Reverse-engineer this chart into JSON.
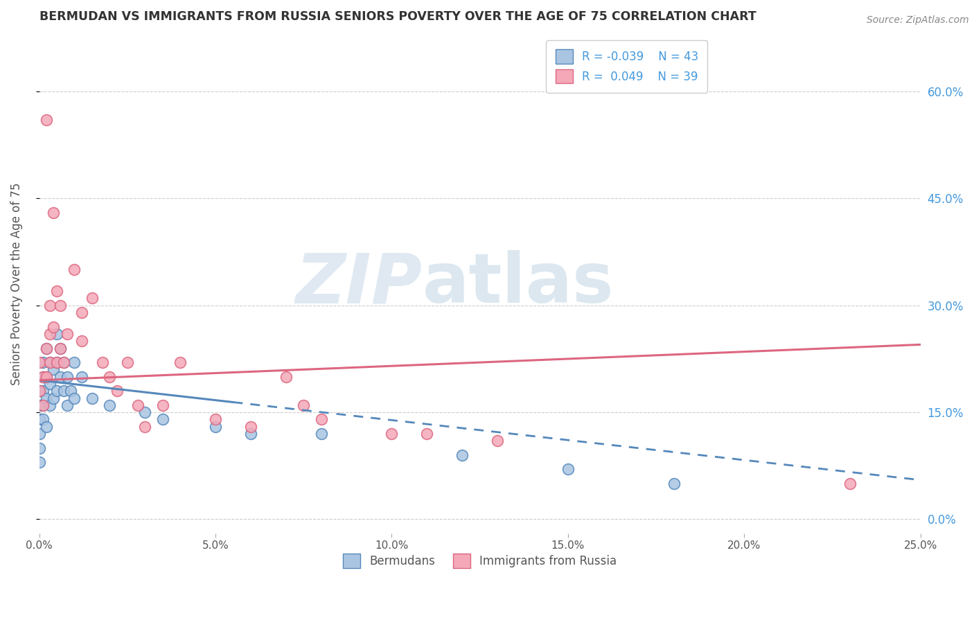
{
  "title": "BERMUDAN VS IMMIGRANTS FROM RUSSIA SENIORS POVERTY OVER THE AGE OF 75 CORRELATION CHART",
  "source": "Source: ZipAtlas.com",
  "xlabel": "",
  "ylabel": "Seniors Poverty Over the Age of 75",
  "xlim": [
    0.0,
    0.25
  ],
  "ylim": [
    -0.02,
    0.68
  ],
  "xticks": [
    0.0,
    0.05,
    0.1,
    0.15,
    0.2,
    0.25
  ],
  "xtick_labels": [
    "0.0%",
    "5.0%",
    "10.0%",
    "15.0%",
    "20.0%",
    "25.0%"
  ],
  "ytick_positions": [
    0.0,
    0.15,
    0.3,
    0.45,
    0.6
  ],
  "ytick_labels": [
    "0.0%",
    "15.0%",
    "30.0%",
    "45.0%",
    "60.0%"
  ],
  "bermudans_x": [
    0.0,
    0.0,
    0.0,
    0.0,
    0.0,
    0.0,
    0.001,
    0.001,
    0.001,
    0.001,
    0.001,
    0.002,
    0.002,
    0.002,
    0.002,
    0.003,
    0.003,
    0.003,
    0.004,
    0.004,
    0.005,
    0.005,
    0.005,
    0.006,
    0.006,
    0.007,
    0.007,
    0.008,
    0.008,
    0.009,
    0.01,
    0.01,
    0.012,
    0.015,
    0.02,
    0.03,
    0.035,
    0.05,
    0.06,
    0.08,
    0.12,
    0.15,
    0.18
  ],
  "bermudans_y": [
    0.18,
    0.16,
    0.14,
    0.12,
    0.1,
    0.08,
    0.22,
    0.2,
    0.18,
    0.16,
    0.14,
    0.24,
    0.2,
    0.17,
    0.13,
    0.22,
    0.19,
    0.16,
    0.21,
    0.17,
    0.26,
    0.22,
    0.18,
    0.24,
    0.2,
    0.22,
    0.18,
    0.2,
    0.16,
    0.18,
    0.22,
    0.17,
    0.2,
    0.17,
    0.16,
    0.15,
    0.14,
    0.13,
    0.12,
    0.12,
    0.09,
    0.07,
    0.05
  ],
  "russia_x": [
    0.0,
    0.0,
    0.001,
    0.001,
    0.002,
    0.002,
    0.002,
    0.003,
    0.003,
    0.003,
    0.004,
    0.004,
    0.005,
    0.005,
    0.006,
    0.006,
    0.007,
    0.008,
    0.01,
    0.012,
    0.012,
    0.015,
    0.018,
    0.02,
    0.022,
    0.025,
    0.028,
    0.03,
    0.035,
    0.04,
    0.05,
    0.06,
    0.07,
    0.075,
    0.08,
    0.1,
    0.11,
    0.13,
    0.23
  ],
  "russia_y": [
    0.22,
    0.18,
    0.2,
    0.16,
    0.56,
    0.24,
    0.2,
    0.3,
    0.26,
    0.22,
    0.43,
    0.27,
    0.32,
    0.22,
    0.3,
    0.24,
    0.22,
    0.26,
    0.35,
    0.29,
    0.25,
    0.31,
    0.22,
    0.2,
    0.18,
    0.22,
    0.16,
    0.13,
    0.16,
    0.22,
    0.14,
    0.13,
    0.2,
    0.16,
    0.14,
    0.12,
    0.12,
    0.11,
    0.05
  ],
  "bermudans_color": "#aac5e2",
  "russia_color": "#f4a8b8",
  "bermudans_edge": "#5588bb",
  "russia_edge": "#dd6680",
  "trend_bermudans_color": "#5588bb",
  "trend_russia_color": "#dd6680",
  "R_bermudans": -0.039,
  "N_bermudans": 43,
  "R_russia": 0.049,
  "N_russia": 39,
  "legend_label_bermudans": "Bermudans",
  "legend_label_russia": "Immigrants from Russia",
  "watermark_zip": "ZIP",
  "watermark_atlas": "atlas",
  "background_color": "#ffffff",
  "grid_color": "#cccccc",
  "title_color": "#333333",
  "axis_label_color": "#555555",
  "tick_color_right": "#4499dd",
  "tick_color_bottom": "#555555",
  "trend_solid_x_max": 0.055,
  "trend_b_start_y": 0.195,
  "trend_b_end_y": 0.055,
  "trend_r_start_y": 0.195,
  "trend_r_end_y": 0.245
}
